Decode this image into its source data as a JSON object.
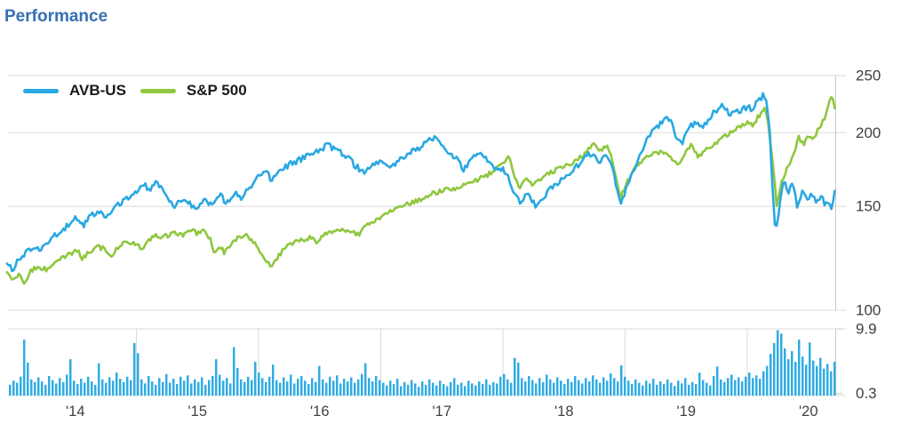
{
  "title": "Performance",
  "colors": {
    "title_text": "#366FB2",
    "avb_line": "#29A8E1",
    "sp500_line": "#8FC73E",
    "volume_bar": "#30ACE3",
    "gridline": "#DBDBDB",
    "axis_line": "#C9C9C9",
    "axis_text": "#404040"
  },
  "chart_data": {
    "type": "line",
    "title": "Performance",
    "legend_position": "top-left",
    "x_axis": {
      "tick_labels": [
        "'14",
        "'15",
        "'16",
        "'17",
        "'18",
        "'19",
        "'20"
      ],
      "tick_years": [
        2014,
        2015,
        2016,
        2017,
        2018,
        2019,
        2020
      ],
      "range_years": [
        2013.94,
        2020.72
      ]
    },
    "y_axis": {
      "side": "right",
      "scale": "log",
      "ticks": [
        250,
        200,
        150,
        100
      ],
      "range": [
        100,
        250
      ]
    },
    "volume_axis": {
      "side": "right",
      "ticks": [
        9.9,
        0.3
      ],
      "range": [
        0,
        9.9
      ]
    },
    "series": [
      {
        "name": "AVB-US",
        "color": "#29A8E1",
        "points": [
          [
            2013.94,
            120
          ],
          [
            2013.99,
            117
          ],
          [
            2014.03,
            121
          ],
          [
            2014.1,
            125
          ],
          [
            2014.16,
            128
          ],
          [
            2014.22,
            127
          ],
          [
            2014.3,
            132
          ],
          [
            2014.38,
            136
          ],
          [
            2014.45,
            140
          ],
          [
            2014.5,
            143
          ],
          [
            2014.56,
            139
          ],
          [
            2014.63,
            145
          ],
          [
            2014.7,
            148
          ],
          [
            2014.76,
            144
          ],
          [
            2014.84,
            150
          ],
          [
            2014.92,
            154
          ],
          [
            2015.0,
            159
          ],
          [
            2015.06,
            164
          ],
          [
            2015.11,
            159
          ],
          [
            2015.17,
            165
          ],
          [
            2015.24,
            156
          ],
          [
            2015.31,
            150
          ],
          [
            2015.38,
            155
          ],
          [
            2015.44,
            151
          ],
          [
            2015.5,
            148
          ],
          [
            2015.56,
            154
          ],
          [
            2015.62,
            150
          ],
          [
            2015.69,
            156
          ],
          [
            2015.74,
            152
          ],
          [
            2015.81,
            158
          ],
          [
            2015.87,
            155
          ],
          [
            2015.93,
            162
          ],
          [
            2016.0,
            169
          ],
          [
            2016.05,
            173
          ],
          [
            2016.11,
            166
          ],
          [
            2016.18,
            172
          ],
          [
            2016.26,
            177
          ],
          [
            2016.34,
            180
          ],
          [
            2016.42,
            184
          ],
          [
            2016.5,
            187
          ],
          [
            2016.56,
            190
          ],
          [
            2016.6,
            189
          ],
          [
            2016.66,
            186
          ],
          [
            2016.72,
            182
          ],
          [
            2016.79,
            176
          ],
          [
            2016.86,
            171
          ],
          [
            2016.93,
            177
          ],
          [
            2017.0,
            178
          ],
          [
            2017.07,
            173
          ],
          [
            2017.14,
            179
          ],
          [
            2017.22,
            184
          ],
          [
            2017.3,
            188
          ],
          [
            2017.38,
            193
          ],
          [
            2017.45,
            197
          ],
          [
            2017.5,
            191
          ],
          [
            2017.57,
            185
          ],
          [
            2017.63,
            180
          ],
          [
            2017.68,
            173
          ],
          [
            2017.75,
            182
          ],
          [
            2017.81,
            186
          ],
          [
            2017.88,
            178
          ],
          [
            2017.93,
            174
          ],
          [
            2018.0,
            174
          ],
          [
            2018.05,
            168
          ],
          [
            2018.09,
            158
          ],
          [
            2018.14,
            152
          ],
          [
            2018.2,
            157
          ],
          [
            2018.27,
            150
          ],
          [
            2018.33,
            156
          ],
          [
            2018.4,
            161
          ],
          [
            2018.48,
            166
          ],
          [
            2018.55,
            171
          ],
          [
            2018.62,
            177
          ],
          [
            2018.68,
            182
          ],
          [
            2018.73,
            185
          ],
          [
            2018.78,
            179
          ],
          [
            2018.84,
            182
          ],
          [
            2018.9,
            174
          ],
          [
            2018.96,
            151
          ],
          [
            2019.0,
            158
          ],
          [
            2019.06,
            172
          ],
          [
            2019.12,
            182
          ],
          [
            2019.18,
            196
          ],
          [
            2019.24,
            203
          ],
          [
            2019.3,
            208
          ],
          [
            2019.36,
            212
          ],
          [
            2019.42,
            197
          ],
          [
            2019.47,
            193
          ],
          [
            2019.53,
            204
          ],
          [
            2019.58,
            209
          ],
          [
            2019.63,
            204
          ],
          [
            2019.69,
            212
          ],
          [
            2019.75,
            219
          ],
          [
            2019.8,
            224
          ],
          [
            2019.85,
            214
          ],
          [
            2019.9,
            220
          ],
          [
            2019.95,
            217
          ],
          [
            2020.0,
            222
          ],
          [
            2020.04,
            218
          ],
          [
            2020.08,
            226
          ],
          [
            2020.12,
            230
          ],
          [
            2020.15,
            232
          ],
          [
            2020.18,
            208
          ],
          [
            2020.2,
            172
          ],
          [
            2020.23,
            134
          ],
          [
            2020.26,
            147
          ],
          [
            2020.3,
            168
          ],
          [
            2020.33,
            157
          ],
          [
            2020.37,
            164
          ],
          [
            2020.41,
            150
          ],
          [
            2020.45,
            159
          ],
          [
            2020.49,
            153
          ],
          [
            2020.53,
            158
          ],
          [
            2020.57,
            152
          ],
          [
            2020.61,
            156
          ],
          [
            2020.64,
            150
          ],
          [
            2020.67,
            154
          ],
          [
            2020.69,
            149
          ],
          [
            2020.72,
            161
          ]
        ]
      },
      {
        "name": "S&P 500",
        "color": "#8FC73E",
        "points": [
          [
            2013.94,
            116
          ],
          [
            2013.99,
            113
          ],
          [
            2014.04,
            115
          ],
          [
            2014.08,
            111
          ],
          [
            2014.13,
            116
          ],
          [
            2014.2,
            119
          ],
          [
            2014.26,
            117
          ],
          [
            2014.33,
            121
          ],
          [
            2014.4,
            123
          ],
          [
            2014.46,
            125
          ],
          [
            2014.52,
            126
          ],
          [
            2014.56,
            122
          ],
          [
            2014.62,
            126
          ],
          [
            2014.68,
            128
          ],
          [
            2014.74,
            127
          ],
          [
            2014.79,
            122
          ],
          [
            2014.86,
            129
          ],
          [
            2014.93,
            131
          ],
          [
            2014.99,
            130
          ],
          [
            2015.04,
            127
          ],
          [
            2015.1,
            131
          ],
          [
            2015.16,
            134
          ],
          [
            2015.22,
            133
          ],
          [
            2015.3,
            135
          ],
          [
            2015.37,
            134
          ],
          [
            2015.44,
            137
          ],
          [
            2015.5,
            135
          ],
          [
            2015.56,
            136
          ],
          [
            2015.61,
            132
          ],
          [
            2015.64,
            124
          ],
          [
            2015.68,
            129
          ],
          [
            2015.72,
            125
          ],
          [
            2015.78,
            130
          ],
          [
            2015.84,
            133
          ],
          [
            2015.9,
            134
          ],
          [
            2015.96,
            131
          ],
          [
            2016.01,
            126
          ],
          [
            2016.06,
            121
          ],
          [
            2016.11,
            119
          ],
          [
            2016.17,
            124
          ],
          [
            2016.24,
            129
          ],
          [
            2016.31,
            131
          ],
          [
            2016.38,
            132
          ],
          [
            2016.44,
            133
          ],
          [
            2016.48,
            130
          ],
          [
            2016.53,
            134
          ],
          [
            2016.6,
            136
          ],
          [
            2016.68,
            137
          ],
          [
            2016.75,
            136
          ],
          [
            2016.82,
            134
          ],
          [
            2016.87,
            138
          ],
          [
            2016.94,
            142
          ],
          [
            2017.0,
            144
          ],
          [
            2017.08,
            147
          ],
          [
            2017.16,
            150
          ],
          [
            2017.24,
            152
          ],
          [
            2017.32,
            154
          ],
          [
            2017.4,
            157
          ],
          [
            2017.48,
            159
          ],
          [
            2017.56,
            161
          ],
          [
            2017.62,
            160
          ],
          [
            2017.7,
            164
          ],
          [
            2017.78,
            166
          ],
          [
            2017.86,
            169
          ],
          [
            2017.94,
            173
          ],
          [
            2018.0,
            177
          ],
          [
            2018.05,
            184
          ],
          [
            2018.1,
            167
          ],
          [
            2018.13,
            161
          ],
          [
            2018.19,
            168
          ],
          [
            2018.24,
            164
          ],
          [
            2018.3,
            167
          ],
          [
            2018.37,
            170
          ],
          [
            2018.44,
            173
          ],
          [
            2018.51,
            175
          ],
          [
            2018.58,
            178
          ],
          [
            2018.65,
            183
          ],
          [
            2018.7,
            187
          ],
          [
            2018.74,
            192
          ],
          [
            2018.79,
            187
          ],
          [
            2018.85,
            190
          ],
          [
            2018.9,
            179
          ],
          [
            2018.96,
            154
          ],
          [
            2019.0,
            162
          ],
          [
            2019.06,
            172
          ],
          [
            2019.12,
            178
          ],
          [
            2019.18,
            182
          ],
          [
            2019.24,
            184
          ],
          [
            2019.31,
            186
          ],
          [
            2019.37,
            182
          ],
          [
            2019.43,
            176
          ],
          [
            2019.49,
            184
          ],
          [
            2019.54,
            190
          ],
          [
            2019.6,
            182
          ],
          [
            2019.66,
            187
          ],
          [
            2019.72,
            191
          ],
          [
            2019.78,
            194
          ],
          [
            2019.83,
            198
          ],
          [
            2019.89,
            202
          ],
          [
            2019.95,
            205
          ],
          [
            2020.0,
            209
          ],
          [
            2020.05,
            206
          ],
          [
            2020.09,
            213
          ],
          [
            2020.13,
            218
          ],
          [
            2020.15,
            221
          ],
          [
            2020.18,
            200
          ],
          [
            2020.21,
            176
          ],
          [
            2020.24,
            151
          ],
          [
            2020.27,
            162
          ],
          [
            2020.31,
            171
          ],
          [
            2020.34,
            176
          ],
          [
            2020.38,
            184
          ],
          [
            2020.42,
            196
          ],
          [
            2020.46,
            191
          ],
          [
            2020.5,
            198
          ],
          [
            2020.54,
            195
          ],
          [
            2020.58,
            203
          ],
          [
            2020.62,
            209
          ],
          [
            2020.65,
            216
          ],
          [
            2020.67,
            224
          ],
          [
            2020.69,
            231
          ],
          [
            2020.71,
            223
          ],
          [
            2020.72,
            218
          ]
        ]
      }
    ],
    "volume_series": {
      "name": "Volume",
      "color": "#30ACE3",
      "start_year": 2013.956,
      "bar_interval_years": 0.0291,
      "values": [
        1.6,
        2.2,
        1.9,
        2.8,
        8.3,
        4.9,
        2.4,
        2.0,
        2.7,
        2.1,
        1.6,
        2.9,
        2.3,
        1.8,
        2.6,
        2.0,
        3.1,
        5.4,
        2.2,
        1.7,
        2.5,
        1.9,
        2.8,
        2.1,
        1.6,
        4.8,
        2.4,
        1.9,
        2.7,
        2.2,
        3.4,
        2.5,
        2.0,
        2.8,
        2.3,
        7.8,
        6.3,
        2.4,
        1.8,
        2.9,
        2.1,
        1.6,
        2.6,
        2.0,
        3.2,
        1.9,
        2.5,
        1.7,
        2.8,
        2.2,
        3.0,
        1.8,
        2.4,
        2.0,
        2.7,
        1.6,
        2.3,
        2.9,
        5.4,
        3.1,
        2.2,
        2.6,
        1.8,
        7.2,
        4.1,
        2.4,
        2.0,
        2.8,
        2.3,
        5.0,
        3.4,
        2.6,
        2.0,
        2.8,
        4.6,
        2.3,
        1.9,
        2.7,
        2.1,
        3.1,
        1.8,
        2.5,
        2.9,
        2.2,
        1.7,
        2.6,
        2.0,
        4.4,
        2.4,
        1.9,
        2.8,
        2.2,
        3.0,
        1.8,
        2.5,
        2.1,
        2.7,
        1.9,
        2.4,
        3.2,
        4.8,
        2.6,
        2.1,
        2.9,
        2.3,
        1.9,
        1.5,
        2.2,
        1.7,
        2.5,
        1.4,
        2.0,
        1.6,
        2.3,
        1.8,
        1.3,
        2.1,
        1.6,
        2.4,
        1.9,
        1.5,
        2.2,
        1.7,
        1.4,
        2.0,
        2.6,
        1.6,
        1.9,
        1.4,
        2.2,
        1.8,
        1.5,
        2.1,
        1.7,
        2.4,
        1.6,
        2.0,
        1.8,
        2.8,
        3.2,
        2.4,
        1.9,
        5.6,
        4.9,
        2.6,
        2.1,
        2.9,
        2.3,
        1.8,
        2.6,
        2.0,
        3.1,
        2.4,
        1.9,
        2.7,
        2.2,
        1.7,
        2.5,
        2.0,
        2.9,
        2.3,
        1.8,
        2.6,
        2.1,
        3.0,
        2.4,
        1.9,
        2.7,
        2.2,
        3.3,
        2.6,
        2.1,
        4.5,
        2.8,
        2.2,
        1.7,
        2.4,
        1.9,
        1.5,
        2.2,
        1.8,
        2.5,
        1.6,
        2.1,
        1.7,
        2.4,
        1.9,
        1.4,
        2.2,
        1.8,
        2.6,
        1.6,
        2.0,
        1.7,
        3.4,
        2.3,
        1.9,
        1.5,
        2.9,
        4.3,
        2.4,
        2.0,
        2.6,
        3.1,
        2.3,
        2.7,
        2.1,
        2.8,
        3.4,
        2.6,
        3.0,
        2.5,
        3.6,
        4.4,
        6.2,
        7.8,
        9.7,
        9.2,
        7.0,
        5.4,
        6.6,
        5.0,
        8.3,
        5.8,
        4.6,
        7.9,
        5.2,
        4.4,
        5.6,
        4.0,
        4.7,
        3.6,
        5.0
      ]
    }
  }
}
